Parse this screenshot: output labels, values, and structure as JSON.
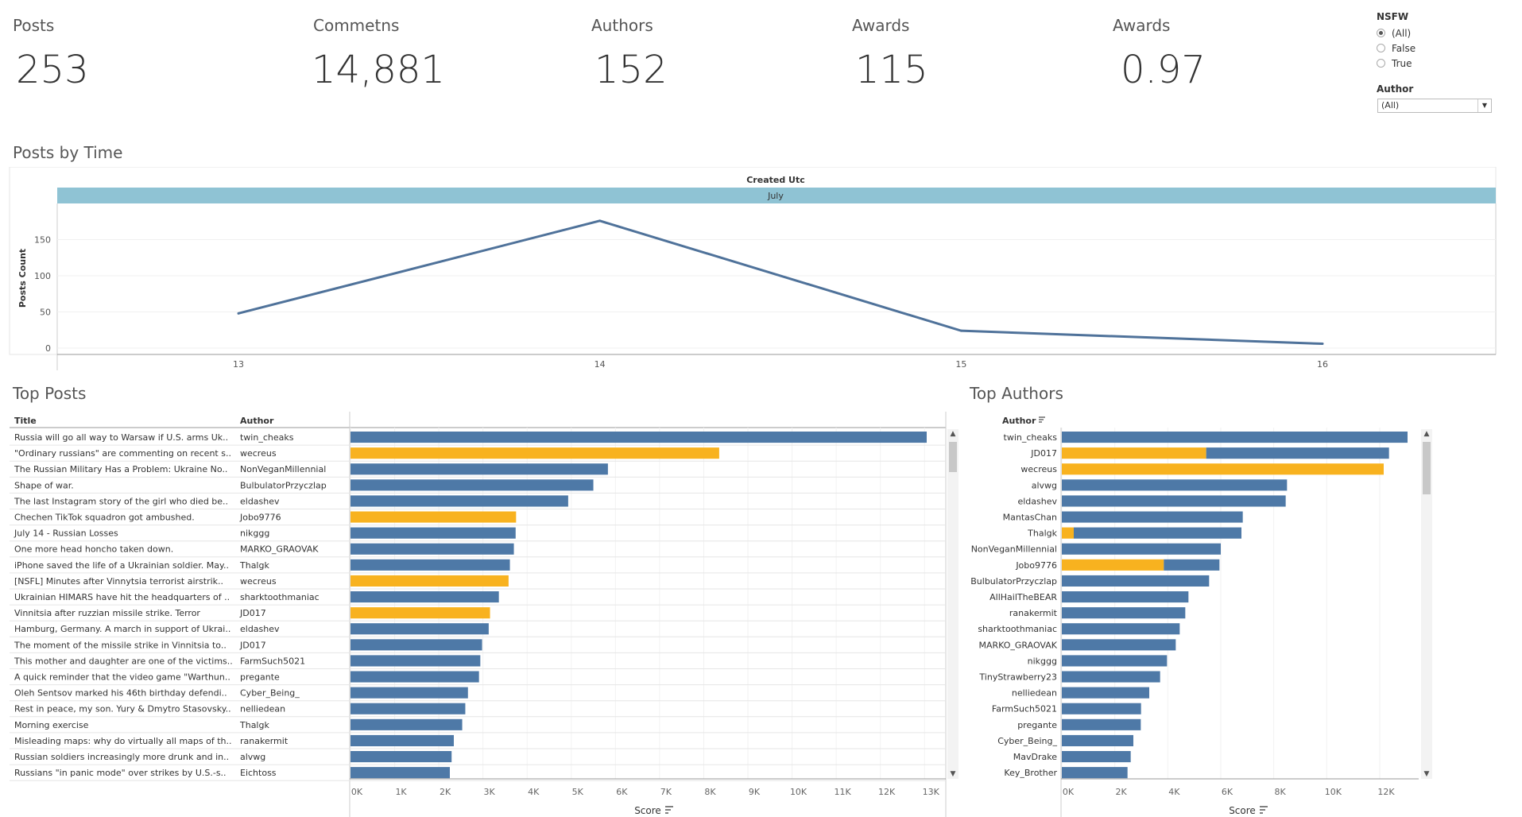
{
  "kpis": [
    {
      "label": "Posts",
      "value": "253"
    },
    {
      "label": "Commetns",
      "value": "14,881"
    },
    {
      "label": "Authors",
      "value": "152"
    },
    {
      "label": "Awards",
      "value": "115"
    },
    {
      "label": "Awards",
      "value": "0.97"
    }
  ],
  "filters": {
    "nsfw_title": "NSFW",
    "nsfw_options": [
      "(All)",
      "False",
      "True"
    ],
    "nsfw_selected": "(All)",
    "author_title": "Author",
    "author_value": "(All)"
  },
  "colors": {
    "blue": "#4e79a7",
    "orange": "#f8b21f",
    "header": "#8fc3d4",
    "line": "#4f729a"
  },
  "time_chart": {
    "section_title": "Posts by Time",
    "header_title": "Created Utc",
    "header_band": "July",
    "chart_data": {
      "type": "line",
      "x": [
        13,
        14,
        15,
        16
      ],
      "y": [
        48,
        176,
        24,
        6
      ],
      "xticks": [
        "13",
        "14",
        "15",
        "16"
      ],
      "yticks": [
        "0",
        "50",
        "100",
        "150"
      ],
      "ylabel": "Posts Count",
      "ylim": [
        0,
        200
      ]
    }
  },
  "top_posts": {
    "section_title": "Top Posts",
    "col_title": "Title",
    "col_author": "Author",
    "axis_label": "Score",
    "xticks": [
      "0K",
      "1K",
      "2K",
      "3K",
      "4K",
      "5K",
      "6K",
      "7K",
      "8K",
      "9K",
      "10K",
      "11K",
      "12K",
      "13K"
    ],
    "chart_data": {
      "type": "bar",
      "xlim": [
        0,
        13500
      ],
      "rows": [
        {
          "title": "Russia will go all way to Warsaw if U.S. arms Uk..",
          "author": "twin_cheaks",
          "value": 13050,
          "nsfw": false
        },
        {
          "title": "\"Ordinary russians\" are commenting on recent s..",
          "author": "wecreus",
          "value": 8350,
          "nsfw": true
        },
        {
          "title": "The Russian Military Has a Problem: Ukraine No..",
          "author": "NonVeganMillennial",
          "value": 5830,
          "nsfw": false
        },
        {
          "title": "Shape of war.",
          "author": "BulbulatorPrzyczlap",
          "value": 5500,
          "nsfw": false
        },
        {
          "title": "The last Instagram story of the girl who died be..",
          "author": "eldashev",
          "value": 4930,
          "nsfw": false
        },
        {
          "title": "Chechen TikTok squadron got ambushed.",
          "author": "Jobo9776",
          "value": 3750,
          "nsfw": true
        },
        {
          "title": "July 14 - Russian Losses",
          "author": "nikggg",
          "value": 3740,
          "nsfw": false
        },
        {
          "title": "One more head honcho taken down.",
          "author": "MARKO_GRAOVAK",
          "value": 3700,
          "nsfw": false
        },
        {
          "title": "iPhone saved the life of a Ukrainian soldier. May..",
          "author": "Thalgk",
          "value": 3610,
          "nsfw": false
        },
        {
          "title": "[NSFL] Minutes after Vinnytsia terrorist airstrik..",
          "author": "wecreus",
          "value": 3580,
          "nsfw": true
        },
        {
          "title": "Ukrainian HIMARS have hit the headquarters of ..",
          "author": "sharktoothmaniac",
          "value": 3360,
          "nsfw": false
        },
        {
          "title": "Vinnitsia after ruzzian missile strike. Terror",
          "author": "JD017",
          "value": 3160,
          "nsfw": true
        },
        {
          "title": "Hamburg, Germany. A march in support of Ukrai..",
          "author": "eldashev",
          "value": 3130,
          "nsfw": false
        },
        {
          "title": "The moment of the missile strike in Vinnitsia to..",
          "author": "JD017",
          "value": 2980,
          "nsfw": false
        },
        {
          "title": "This mother and daughter are one of the victims..",
          "author": "FarmSuch5021",
          "value": 2940,
          "nsfw": false
        },
        {
          "title": "A quick reminder that the video game \"Warthun..",
          "author": "pregante",
          "value": 2910,
          "nsfw": false
        },
        {
          "title": "Oleh Sentsov marked his 46th birthday defendi..",
          "author": "Cyber_Being_",
          "value": 2660,
          "nsfw": false
        },
        {
          "title": "Rest in peace, my son. Yury & Dmytro Stasovsky..",
          "author": "nelliedean",
          "value": 2600,
          "nsfw": false
        },
        {
          "title": "Morning exercise",
          "author": "Thalgk",
          "value": 2530,
          "nsfw": false
        },
        {
          "title": "Misleading maps: why do virtually all maps of th..",
          "author": "ranakermit",
          "value": 2340,
          "nsfw": false
        },
        {
          "title": "Russian soldiers increasingly more drunk and in..",
          "author": "alvwg",
          "value": 2290,
          "nsfw": false
        },
        {
          "title": "Russians \"in panic mode\" over strikes by U.S.-s..",
          "author": "Eichtoss",
          "value": 2250,
          "nsfw": false
        }
      ]
    }
  },
  "top_authors": {
    "section_title": "Top Authors",
    "col_author": "Author",
    "axis_label": "Score",
    "xticks": [
      "0K",
      "2K",
      "4K",
      "6K",
      "8K",
      "10K",
      "12K"
    ],
    "chart_data": {
      "type": "bar",
      "stacked": true,
      "xlim": [
        0,
        13500
      ],
      "rows": [
        {
          "author": "twin_cheaks",
          "normal": 13050,
          "nsfw": 0
        },
        {
          "author": "JD017",
          "normal": 6900,
          "nsfw": 5450
        },
        {
          "author": "wecreus",
          "normal": 0,
          "nsfw": 12150
        },
        {
          "author": "alvwg",
          "normal": 8500,
          "nsfw": 0
        },
        {
          "author": "eldashev",
          "normal": 8450,
          "nsfw": 0
        },
        {
          "author": "MantasChan",
          "normal": 6830,
          "nsfw": 0
        },
        {
          "author": "Thalgk",
          "normal": 6330,
          "nsfw": 450
        },
        {
          "author": "NonVeganMillennial",
          "normal": 6000,
          "nsfw": 0
        },
        {
          "author": "Jobo9776",
          "normal": 2100,
          "nsfw": 3850
        },
        {
          "author": "BulbulatorPrzyczlap",
          "normal": 5560,
          "nsfw": 0
        },
        {
          "author": "AllHailTheBEAR",
          "normal": 4780,
          "nsfw": 0
        },
        {
          "author": "ranakermit",
          "normal": 4660,
          "nsfw": 0
        },
        {
          "author": "sharktoothmaniac",
          "normal": 4450,
          "nsfw": 0
        },
        {
          "author": "MARKO_GRAOVAK",
          "normal": 4300,
          "nsfw": 0
        },
        {
          "author": "nikggg",
          "normal": 3970,
          "nsfw": 0
        },
        {
          "author": "TinyStrawberry23",
          "normal": 3710,
          "nsfw": 0
        },
        {
          "author": "nelliedean",
          "normal": 3300,
          "nsfw": 0
        },
        {
          "author": "FarmSuch5021",
          "normal": 2990,
          "nsfw": 0
        },
        {
          "author": "pregante",
          "normal": 2980,
          "nsfw": 0
        },
        {
          "author": "Cyber_Being_",
          "normal": 2700,
          "nsfw": 0
        },
        {
          "author": "MavDrake",
          "normal": 2600,
          "nsfw": 0
        },
        {
          "author": "Key_Brother",
          "normal": 2480,
          "nsfw": 0
        }
      ]
    }
  }
}
